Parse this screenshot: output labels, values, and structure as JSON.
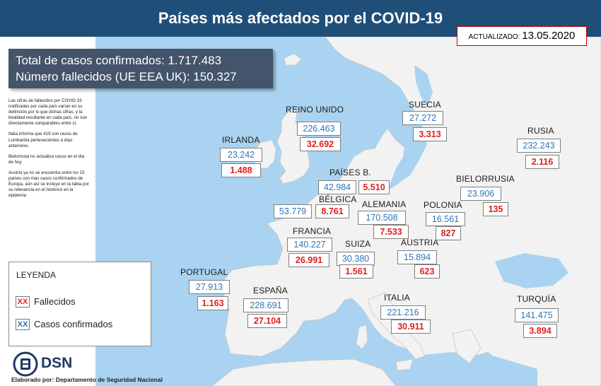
{
  "header": {
    "title": "Países más afectados por el COVID-19"
  },
  "updated": {
    "label": "ACTUALIZADO:",
    "date": "13.05.2020"
  },
  "totals": {
    "cases_line": "Total de casos confirmados:  1.717.483",
    "deaths_line": "Número fallecidos (UE EEA UK): 150.327"
  },
  "notes": [
    "Las cifras de fallecidos por COVID-19 notificadas por cada país varían en su definición por lo que dichas cifras, y la letalidad resultante en cada país, no son directamente comparables entre sí.",
    "Italia informa que 419 son casos de Lombardía pertenecientes a días anteriores.",
    "Bielorrusia no actualiza casos en el día de hoy",
    "Austria ya no se encuentra entre los 15 países con más casos confirmados de Europa, aún así se incluye en la tabla por su relevancia en el histórico en la epidemia"
  ],
  "legend": {
    "title": "LEYENDA",
    "deaths_marker": "XX",
    "deaths_label": "Fallecidos",
    "cases_marker": "XX",
    "cases_label": "Casos confirmados"
  },
  "countries": [
    {
      "name": "REINO UNIDO",
      "cases": "226.463",
      "deaths": "32.692"
    },
    {
      "name": "IRLANDA",
      "cases": "23.242",
      "deaths": "1.488"
    },
    {
      "name": "PAÍSES B.",
      "cases": "42.984",
      "deaths": "5.510"
    },
    {
      "name": "BÉLGICA",
      "cases": "53.779",
      "deaths": "8.761"
    },
    {
      "name": "FRANCIA",
      "cases": "140.227",
      "deaths": "26.991"
    },
    {
      "name": "PORTUGAL",
      "cases": "27.913",
      "deaths": "1.163"
    },
    {
      "name": "ESPAÑA",
      "cases": "228.691",
      "deaths": "27.104"
    },
    {
      "name": "SUIZA",
      "cases": "30.380",
      "deaths": "1.561"
    },
    {
      "name": "ITALIA",
      "cases": "221.216",
      "deaths": "30.911"
    },
    {
      "name": "ALEMANIA",
      "cases": "170.508",
      "deaths": "7.533"
    },
    {
      "name": "AUSTRIA",
      "cases": "15.894",
      "deaths": "623"
    },
    {
      "name": "POLONIA",
      "cases": "16.561",
      "deaths": "827"
    },
    {
      "name": "SUECIA",
      "cases": "27.272",
      "deaths": "3.313"
    },
    {
      "name": "BIELORRUSIA",
      "cases": "23.906",
      "deaths": "135"
    },
    {
      "name": "RUSIA",
      "cases": "232.243",
      "deaths": "2.116"
    },
    {
      "name": "TURQUÍA",
      "cases": "141.475",
      "deaths": "3.894"
    }
  ],
  "logo": {
    "name": "DSN",
    "credit": "Elaborado por: Departamento de Seguridad Nacional"
  },
  "colors": {
    "header": "#1f4e79",
    "sea": "#a9d3f0",
    "land": "#f2f2f2",
    "cases": "#2e75b6",
    "deaths": "#e02020",
    "totals_box": "#44546a"
  }
}
